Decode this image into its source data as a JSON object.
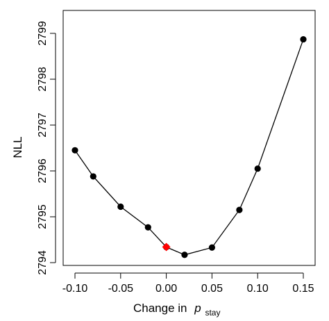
{
  "chart_data": {
    "type": "line",
    "xlabel": "Change in",
    "xlabel_symbol": "p",
    "xlabel_subscript": "stay",
    "ylabel": "NLL",
    "xlim": [
      -0.11,
      0.16
    ],
    "ylim": [
      2794,
      2799
    ],
    "x_ticks": [
      -0.1,
      -0.05,
      0.0,
      0.05,
      0.1,
      0.15
    ],
    "x_tick_labels": [
      "-0.10",
      "-0.05",
      "0.00",
      "0.05",
      "0.10",
      "0.15"
    ],
    "y_ticks": [
      2794,
      2795,
      2796,
      2797,
      2798,
      2799
    ],
    "y_tick_labels": [
      "2794",
      "2795",
      "2796",
      "2797",
      "2798",
      "2799"
    ],
    "grid": false,
    "series": [
      {
        "x": [
          -0.1,
          -0.08,
          -0.05,
          -0.02,
          0.0,
          0.02,
          0.05,
          0.08,
          0.1,
          0.15
        ],
        "y": [
          2796.45,
          2795.88,
          2795.22,
          2794.77,
          2794.34,
          2794.17,
          2794.33,
          2795.15,
          2796.05,
          2798.87
        ],
        "line_color": "#000000",
        "marker_color": "#000000"
      }
    ],
    "highlight": {
      "x": 0.0,
      "y": 2794.34,
      "color": "#ff0000",
      "marker": "diamond"
    }
  }
}
